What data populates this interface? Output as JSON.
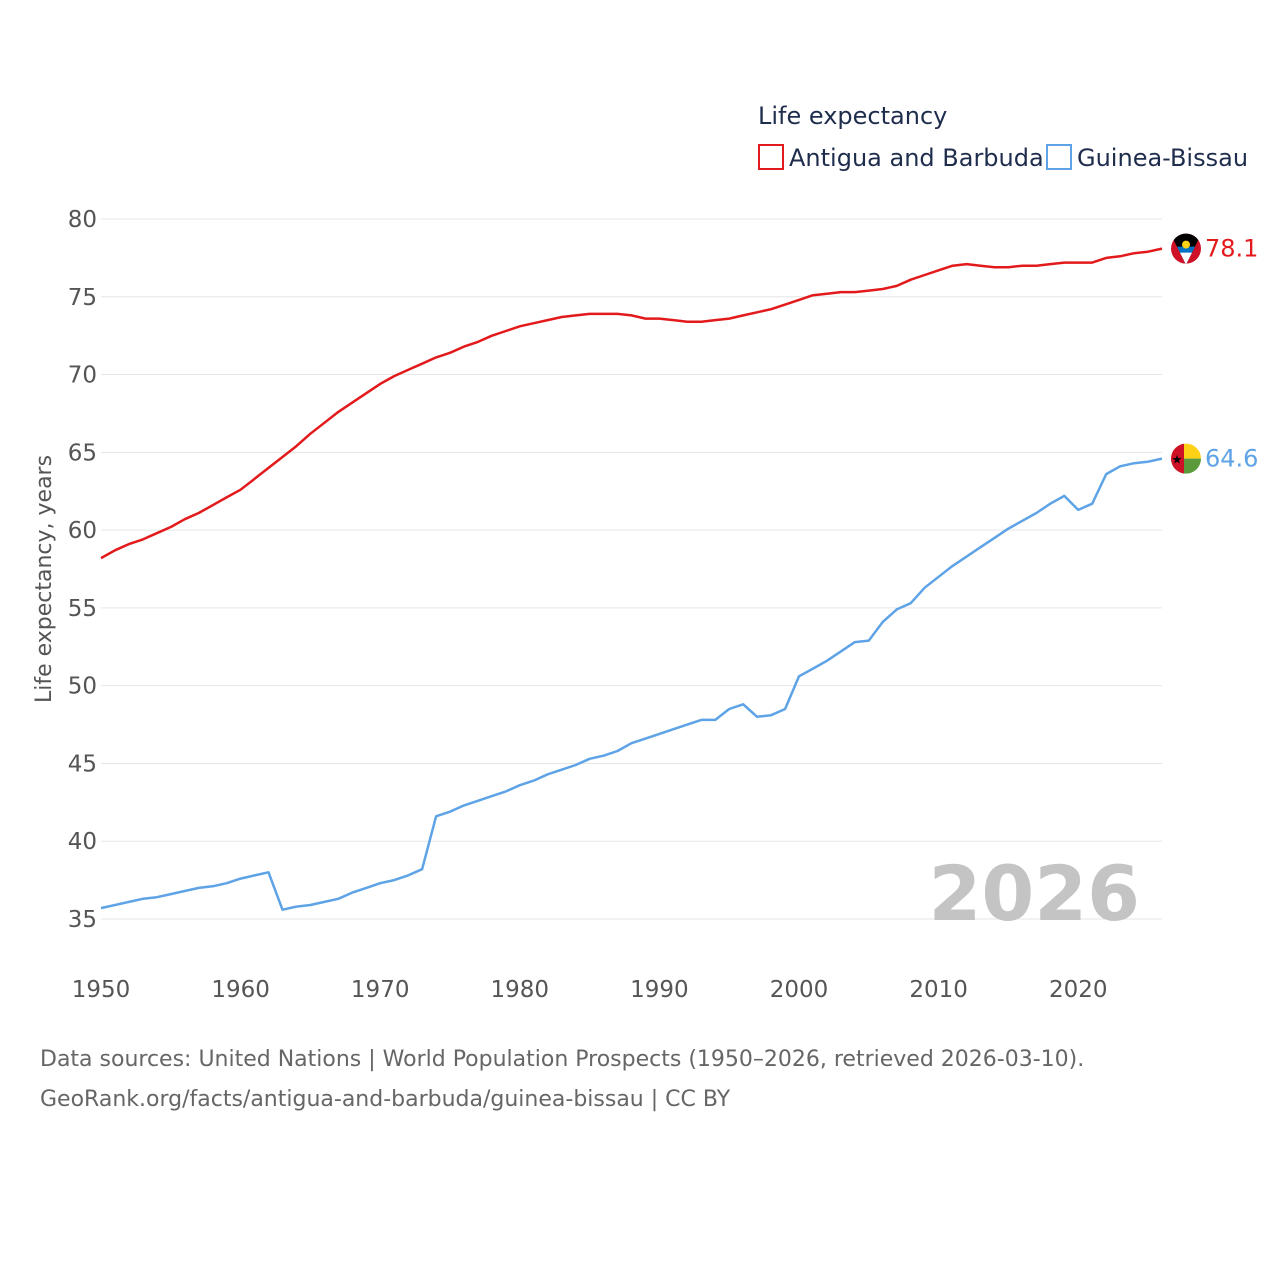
{
  "chart_data": {
    "type": "line",
    "legend_title": "Life expectancy",
    "ylabel": "Life expectancy, years",
    "xlabel": "",
    "year_watermark": "2026",
    "ylim": [
      33,
      81
    ],
    "xlim": [
      1950,
      2026
    ],
    "y_ticks": [
      80,
      75,
      70,
      65,
      60,
      55,
      50,
      45,
      40,
      35
    ],
    "x_ticks": [
      1950,
      1960,
      1970,
      1980,
      1990,
      2000,
      2010,
      2020
    ],
    "legend_position": "top-right",
    "series": [
      {
        "name": "Antigua and Barbuda",
        "color": "#e31a1c",
        "end_label": "78.1",
        "flag_icon": "antigua-and-barbuda-flag-icon",
        "points": [
          [
            1950,
            58.2
          ],
          [
            1951,
            58.7
          ],
          [
            1952,
            59.1
          ],
          [
            1953,
            59.4
          ],
          [
            1954,
            59.8
          ],
          [
            1955,
            60.2
          ],
          [
            1956,
            60.7
          ],
          [
            1957,
            61.1
          ],
          [
            1958,
            61.6
          ],
          [
            1959,
            62.1
          ],
          [
            1960,
            62.6
          ],
          [
            1961,
            63.3
          ],
          [
            1962,
            64.0
          ],
          [
            1963,
            64.7
          ],
          [
            1964,
            65.4
          ],
          [
            1965,
            66.2
          ],
          [
            1966,
            66.9
          ],
          [
            1967,
            67.6
          ],
          [
            1968,
            68.2
          ],
          [
            1969,
            68.8
          ],
          [
            1970,
            69.4
          ],
          [
            1971,
            69.9
          ],
          [
            1972,
            70.3
          ],
          [
            1973,
            70.7
          ],
          [
            1974,
            71.1
          ],
          [
            1975,
            71.4
          ],
          [
            1976,
            71.8
          ],
          [
            1977,
            72.1
          ],
          [
            1978,
            72.5
          ],
          [
            1979,
            72.8
          ],
          [
            1980,
            73.1
          ],
          [
            1981,
            73.3
          ],
          [
            1982,
            73.5
          ],
          [
            1983,
            73.7
          ],
          [
            1984,
            73.8
          ],
          [
            1985,
            73.9
          ],
          [
            1986,
            73.9
          ],
          [
            1987,
            73.9
          ],
          [
            1988,
            73.8
          ],
          [
            1989,
            73.6
          ],
          [
            1990,
            73.6
          ],
          [
            1991,
            73.5
          ],
          [
            1992,
            73.4
          ],
          [
            1993,
            73.4
          ],
          [
            1994,
            73.5
          ],
          [
            1995,
            73.6
          ],
          [
            1996,
            73.8
          ],
          [
            1997,
            74.0
          ],
          [
            1998,
            74.2
          ],
          [
            1999,
            74.5
          ],
          [
            2000,
            74.8
          ],
          [
            2001,
            75.1
          ],
          [
            2002,
            75.2
          ],
          [
            2003,
            75.3
          ],
          [
            2004,
            75.3
          ],
          [
            2005,
            75.4
          ],
          [
            2006,
            75.5
          ],
          [
            2007,
            75.7
          ],
          [
            2008,
            76.1
          ],
          [
            2009,
            76.4
          ],
          [
            2010,
            76.7
          ],
          [
            2011,
            77.0
          ],
          [
            2012,
            77.1
          ],
          [
            2013,
            77.0
          ],
          [
            2014,
            76.9
          ],
          [
            2015,
            76.9
          ],
          [
            2016,
            77.0
          ],
          [
            2017,
            77.0
          ],
          [
            2018,
            77.1
          ],
          [
            2019,
            77.2
          ],
          [
            2020,
            77.2
          ],
          [
            2021,
            77.2
          ],
          [
            2022,
            77.5
          ],
          [
            2023,
            77.6
          ],
          [
            2024,
            77.8
          ],
          [
            2025,
            77.9
          ],
          [
            2026,
            78.1
          ]
        ]
      },
      {
        "name": "Guinea-Bissau",
        "color": "#5ea3e6",
        "end_label": "64.6",
        "flag_icon": "guinea-bissau-flag-icon",
        "points": [
          [
            1950,
            35.7
          ],
          [
            1951,
            35.9
          ],
          [
            1952,
            36.1
          ],
          [
            1953,
            36.3
          ],
          [
            1954,
            36.4
          ],
          [
            1955,
            36.6
          ],
          [
            1956,
            36.8
          ],
          [
            1957,
            37.0
          ],
          [
            1958,
            37.1
          ],
          [
            1959,
            37.3
          ],
          [
            1960,
            37.6
          ],
          [
            1961,
            37.8
          ],
          [
            1962,
            38.0
          ],
          [
            1963,
            35.6
          ],
          [
            1964,
            35.8
          ],
          [
            1965,
            35.9
          ],
          [
            1966,
            36.1
          ],
          [
            1967,
            36.3
          ],
          [
            1968,
            36.7
          ],
          [
            1969,
            37.0
          ],
          [
            1970,
            37.3
          ],
          [
            1971,
            37.5
          ],
          [
            1972,
            37.8
          ],
          [
            1973,
            38.2
          ],
          [
            1974,
            41.6
          ],
          [
            1975,
            41.9
          ],
          [
            1976,
            42.3
          ],
          [
            1977,
            42.6
          ],
          [
            1978,
            42.9
          ],
          [
            1979,
            43.2
          ],
          [
            1980,
            43.6
          ],
          [
            1981,
            43.9
          ],
          [
            1982,
            44.3
          ],
          [
            1983,
            44.6
          ],
          [
            1984,
            44.9
          ],
          [
            1985,
            45.3
          ],
          [
            1986,
            45.5
          ],
          [
            1987,
            45.8
          ],
          [
            1988,
            46.3
          ],
          [
            1989,
            46.6
          ],
          [
            1990,
            46.9
          ],
          [
            1991,
            47.2
          ],
          [
            1992,
            47.5
          ],
          [
            1993,
            47.8
          ],
          [
            1994,
            47.8
          ],
          [
            1995,
            48.5
          ],
          [
            1996,
            48.8
          ],
          [
            1997,
            48.0
          ],
          [
            1998,
            48.1
          ],
          [
            1999,
            48.5
          ],
          [
            2000,
            50.6
          ],
          [
            2001,
            51.1
          ],
          [
            2002,
            51.6
          ],
          [
            2003,
            52.2
          ],
          [
            2004,
            52.8
          ],
          [
            2005,
            52.9
          ],
          [
            2006,
            54.1
          ],
          [
            2007,
            54.9
          ],
          [
            2008,
            55.3
          ],
          [
            2009,
            56.3
          ],
          [
            2010,
            57.0
          ],
          [
            2011,
            57.7
          ],
          [
            2012,
            58.3
          ],
          [
            2013,
            58.9
          ],
          [
            2014,
            59.5
          ],
          [
            2015,
            60.1
          ],
          [
            2016,
            60.6
          ],
          [
            2017,
            61.1
          ],
          [
            2018,
            61.7
          ],
          [
            2019,
            62.2
          ],
          [
            2020,
            61.3
          ],
          [
            2021,
            61.7
          ],
          [
            2022,
            63.6
          ],
          [
            2023,
            64.1
          ],
          [
            2024,
            64.3
          ],
          [
            2025,
            64.4
          ],
          [
            2026,
            64.6
          ]
        ]
      }
    ]
  },
  "footer": {
    "sources_line": "Data sources: United Nations | World Population Prospects (1950–2026, retrieved 2026-03-10).",
    "url_line": "GeoRank.org/facts/antigua-and-barbuda/guinea-bissau | CC BY"
  }
}
